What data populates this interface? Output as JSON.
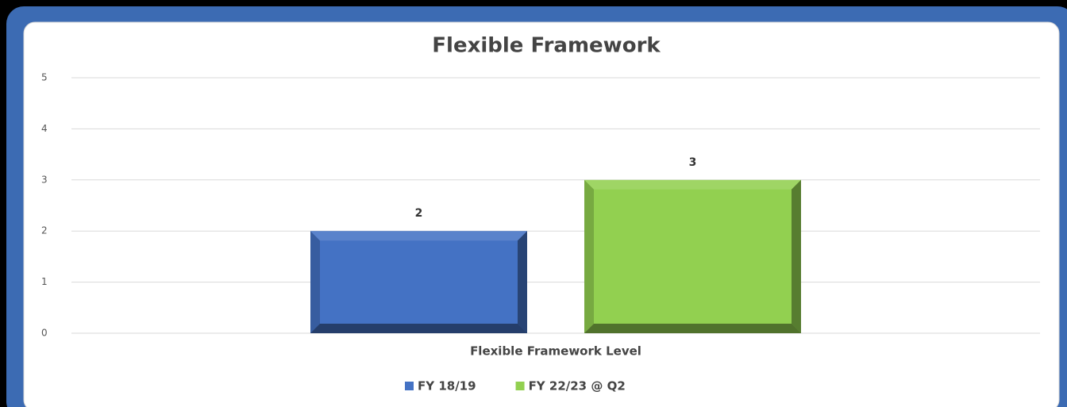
{
  "chart_data": {
    "type": "bar",
    "title": "Flexible Framework",
    "categories": [
      "Flexible Framework Level"
    ],
    "series": [
      {
        "name": "FY 18/19",
        "color": "#4472c4",
        "values": [
          2
        ]
      },
      {
        "name": "FY 22/23 @ Q2",
        "color": "#92d050",
        "values": [
          3
        ]
      }
    ],
    "ylim": [
      0,
      5
    ],
    "yticks": [
      0,
      1,
      2,
      3,
      4,
      5
    ],
    "grid": true,
    "legend": "bottom"
  }
}
